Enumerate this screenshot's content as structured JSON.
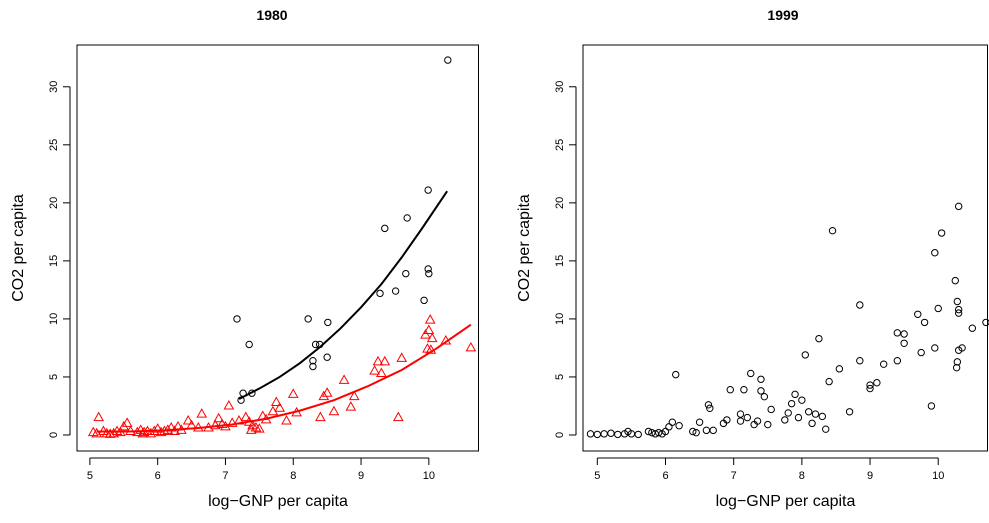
{
  "chart_data": [
    {
      "type": "scatter",
      "title": "1980",
      "x_label": "log−GNP per capita",
      "y_label": "CO2 per capita",
      "xlim": [
        4.81,
        10.74
      ],
      "ylim": [
        -1.38,
        33.6
      ],
      "xticks": [
        5,
        6,
        7,
        8,
        9,
        10
      ],
      "yticks": [
        0,
        5,
        10,
        15,
        20,
        25,
        30
      ],
      "series": [
        {
          "marker": "circle",
          "color": "#000000",
          "x": [
            10.28,
            9.99,
            9.68,
            9.35,
            7.17,
            8.22,
            8.51,
            9.99,
            10.0,
            9.66,
            9.51,
            9.28,
            9.93,
            7.35,
            8.33,
            8.39,
            8.5,
            8.29,
            8.29,
            7.26,
            7.39,
            7.23
          ],
          "values": [
            32.3,
            21.1,
            18.7,
            17.8,
            10.0,
            10.0,
            9.7,
            14.3,
            13.9,
            13.9,
            12.4,
            12.2,
            11.6,
            7.8,
            7.8,
            7.8,
            6.7,
            6.4,
            5.9,
            3.6,
            3.6,
            3.0
          ]
        },
        {
          "marker": "triangle",
          "color": "#ff0000",
          "x": [
            5.05,
            5.1,
            5.13,
            5.2,
            5.25,
            5.3,
            5.35,
            5.4,
            5.45,
            5.5,
            5.55,
            5.6,
            5.7,
            5.75,
            5.78,
            5.8,
            5.85,
            5.9,
            5.95,
            6.0,
            6.05,
            6.1,
            6.15,
            6.2,
            6.25,
            6.3,
            6.35,
            6.45,
            6.5,
            6.6,
            6.65,
            6.75,
            6.85,
            6.9,
            6.95,
            7.0,
            7.05,
            7.1,
            7.2,
            7.3,
            7.35,
            7.38,
            7.4,
            7.45,
            7.5,
            7.55,
            7.6,
            7.7,
            7.75,
            7.8,
            7.9,
            8.0,
            8.05,
            8.4,
            8.45,
            8.5,
            8.6,
            8.75,
            8.85,
            8.9,
            9.2,
            9.25,
            9.3,
            9.35,
            9.55,
            9.6,
            9.95,
            10.0,
            10.02,
            10.05,
            9.98,
            10.03,
            10.25,
            10.62
          ],
          "values": [
            0.2,
            0.1,
            1.5,
            0.3,
            0.1,
            0.05,
            0.1,
            0.3,
            0.2,
            0.7,
            1.0,
            0.3,
            0.2,
            0.4,
            0.1,
            0.2,
            0.3,
            0.1,
            0.3,
            0.5,
            0.2,
            0.3,
            0.4,
            0.6,
            0.3,
            0.7,
            0.4,
            1.2,
            0.8,
            0.6,
            1.8,
            0.6,
            0.8,
            1.4,
            0.9,
            0.7,
            2.5,
            1.0,
            1.2,
            1.5,
            1.1,
            0.4,
            0.8,
            0.6,
            0.5,
            1.6,
            1.3,
            2.0,
            2.8,
            2.3,
            1.2,
            3.5,
            1.9,
            1.5,
            3.3,
            3.6,
            2.0,
            4.7,
            2.4,
            3.3,
            5.5,
            6.3,
            5.3,
            6.3,
            1.5,
            6.6,
            8.6,
            9.0,
            9.9,
            8.3,
            7.4,
            7.3,
            8.1,
            7.5
          ]
        },
        {
          "marker": "line",
          "color": "#000000",
          "x": [
            7.2,
            7.5,
            7.8,
            8.1,
            8.4,
            8.7,
            9.0,
            9.3,
            9.6,
            9.9,
            10.27
          ],
          "values": [
            3.1,
            4.0,
            5.0,
            6.2,
            7.6,
            9.2,
            11.0,
            13.0,
            15.3,
            17.8,
            21.0
          ]
        },
        {
          "marker": "line",
          "color": "#ff0000",
          "x": [
            5.1,
            5.6,
            6.1,
            6.6,
            7.1,
            7.6,
            8.1,
            8.6,
            9.1,
            9.6,
            10.1,
            10.62
          ],
          "values": [
            0.3,
            0.3,
            0.4,
            0.6,
            0.9,
            1.4,
            2.1,
            3.0,
            4.2,
            5.6,
            7.4,
            9.5
          ]
        }
      ]
    },
    {
      "type": "scatter",
      "title": "1999",
      "x_label": "log−GNP per capita",
      "y_label": "CO2 per capita",
      "xlim": [
        4.79,
        10.73
      ],
      "ylim": [
        -1.38,
        33.6
      ],
      "xticks": [
        5,
        6,
        7,
        8,
        9,
        10
      ],
      "yticks": [
        0,
        5,
        10,
        15,
        20,
        25,
        30
      ],
      "series": [
        {
          "marker": "circle",
          "color": "#000000",
          "x": [
            4.9,
            5.0,
            5.1,
            5.2,
            5.3,
            5.4,
            5.45,
            5.5,
            5.6,
            5.75,
            5.8,
            5.85,
            5.9,
            5.95,
            6.0,
            6.05,
            6.1,
            6.15,
            6.2,
            6.4,
            6.45,
            6.5,
            6.6,
            6.63,
            6.65,
            6.7,
            6.85,
            6.9,
            6.95,
            7.1,
            7.1,
            7.15,
            7.2,
            7.25,
            7.3,
            7.35,
            7.4,
            7.4,
            7.45,
            7.5,
            7.55,
            7.75,
            7.8,
            7.85,
            7.9,
            7.95,
            8.0,
            8.05,
            8.1,
            8.15,
            8.2,
            8.25,
            8.3,
            8.35,
            8.4,
            8.45,
            8.55,
            8.7,
            8.85,
            8.85,
            9.0,
            9.0,
            9.1,
            9.2,
            9.4,
            9.4,
            9.5,
            9.5,
            9.7,
            9.75,
            9.8,
            9.9,
            9.95,
            9.95,
            10.0,
            10.05,
            10.25,
            10.28,
            10.3,
            10.3,
            10.3,
            10.3,
            10.35,
            10.28,
            10.27,
            10.5,
            10.7
          ],
          "values": [
            0.1,
            0.05,
            0.1,
            0.15,
            0.05,
            0.1,
            0.3,
            0.1,
            0.05,
            0.3,
            0.2,
            0.1,
            0.2,
            0.1,
            0.3,
            0.7,
            1.1,
            5.2,
            0.8,
            0.3,
            0.2,
            1.1,
            0.4,
            2.6,
            2.3,
            0.4,
            1.0,
            1.3,
            3.9,
            1.2,
            1.8,
            3.9,
            1.5,
            5.3,
            0.9,
            1.2,
            3.8,
            4.8,
            3.3,
            0.9,
            2.2,
            1.3,
            1.9,
            2.7,
            3.5,
            1.5,
            3.0,
            6.9,
            2.0,
            1.0,
            1.8,
            8.3,
            1.6,
            0.5,
            4.6,
            17.6,
            5.7,
            2.0,
            11.2,
            6.4,
            4.0,
            4.3,
            4.5,
            6.1,
            6.4,
            8.8,
            8.7,
            7.9,
            10.4,
            7.1,
            9.7,
            2.5,
            15.7,
            7.5,
            10.9,
            17.4,
            13.3,
            11.5,
            19.7,
            10.5,
            10.8,
            7.3,
            7.5,
            6.3,
            5.8,
            9.2,
            9.7
          ]
        }
      ]
    }
  ]
}
